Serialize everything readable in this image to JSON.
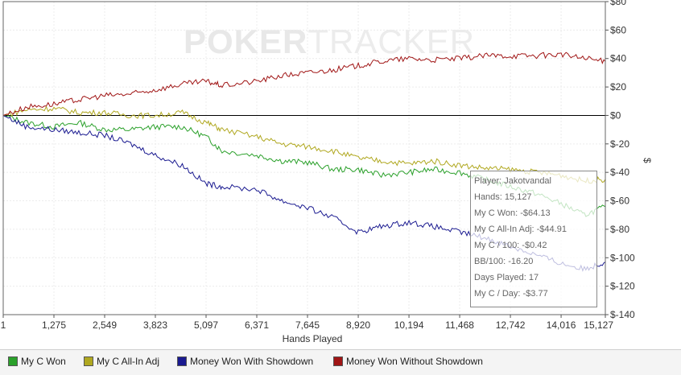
{
  "chart_data": {
    "type": "line",
    "title": "",
    "xlabel": "Hands Played",
    "ylabel": "$",
    "xlim": [
      1,
      15127
    ],
    "ylim": [
      -140,
      80
    ],
    "x_ticks": [
      "1",
      "1,275",
      "2,549",
      "3,823",
      "5,097",
      "6,371",
      "7,645",
      "8,920",
      "10,194",
      "11,468",
      "12,742",
      "14,016",
      "15,127"
    ],
    "y_ticks": [
      "$80",
      "$60",
      "$40",
      "$20",
      "$0",
      "$-20",
      "$-40",
      "$-60",
      "$-80",
      "$-100",
      "$-120",
      "$-140"
    ],
    "series": [
      {
        "name": "My C Won",
        "color": "#2aa02a",
        "x": [
          1,
          600,
          1275,
          1900,
          2549,
          3200,
          3823,
          4500,
          5097,
          5500,
          6371,
          7000,
          7645,
          8300,
          8920,
          9500,
          10194,
          10800,
          11468,
          12100,
          12742,
          13400,
          14016,
          14600,
          15127
        ],
        "values": [
          0,
          -5,
          -8,
          -5,
          -10,
          -10,
          -8,
          -8,
          -15,
          -25,
          -28,
          -32,
          -33,
          -38,
          -38,
          -42,
          -40,
          -38,
          -40,
          -45,
          -50,
          -55,
          -62,
          -70,
          -64.13
        ]
      },
      {
        "name": "My C All-In Adj",
        "color": "#b0a820",
        "x": [
          1,
          600,
          1275,
          1900,
          2549,
          3200,
          3823,
          4500,
          5097,
          5500,
          6371,
          7000,
          7645,
          8300,
          8920,
          9500,
          10194,
          10800,
          11468,
          12100,
          12742,
          13400,
          14016,
          14600,
          15127
        ],
        "values": [
          0,
          4,
          5,
          2,
          2,
          0,
          0,
          2,
          -5,
          -10,
          -15,
          -20,
          -22,
          -25,
          -30,
          -32,
          -34,
          -32,
          -35,
          -37,
          -38,
          -40,
          -42,
          -46,
          -44.91
        ]
      },
      {
        "name": "Money Won With Showdown",
        "color": "#1a1a90",
        "x": [
          1,
          600,
          1275,
          1900,
          2549,
          3200,
          3823,
          4500,
          5097,
          5500,
          6371,
          7000,
          7645,
          8300,
          8920,
          9500,
          10194,
          10800,
          11468,
          12100,
          12742,
          13400,
          14016,
          14600,
          15127
        ],
        "values": [
          0,
          -8,
          -10,
          -12,
          -14,
          -20,
          -28,
          -35,
          -48,
          -50,
          -52,
          -60,
          -65,
          -72,
          -82,
          -78,
          -75,
          -78,
          -82,
          -86,
          -92,
          -98,
          -104,
          -108,
          -103
        ]
      },
      {
        "name": "Money Won Without Showdown",
        "color": "#a01515",
        "x": [
          1,
          600,
          1275,
          1900,
          2549,
          3200,
          3823,
          4500,
          5097,
          5500,
          6371,
          7000,
          7645,
          8300,
          8920,
          9500,
          10194,
          10800,
          11468,
          12100,
          12742,
          13400,
          14016,
          14600,
          15127
        ],
        "values": [
          0,
          6,
          8,
          11,
          14,
          15,
          18,
          22,
          24,
          21,
          24,
          28,
          30,
          32,
          35,
          38,
          40,
          39,
          40,
          42,
          42,
          42,
          43,
          40,
          38
        ]
      }
    ],
    "legend_position": "bottom",
    "grid": true
  },
  "watermark": {
    "bold": "POKER",
    "thin": "TRACKER"
  },
  "tooltip": {
    "lines": [
      "Player: Jakotvandal",
      "Hands: 15,127",
      "My C Won: -$64.13",
      "My C All-In Adj: -$44.91",
      "My C / 100: -$0.42",
      "BB/100: -16.20",
      "Days Played: 17",
      "My C / Day: -$3.77"
    ]
  }
}
